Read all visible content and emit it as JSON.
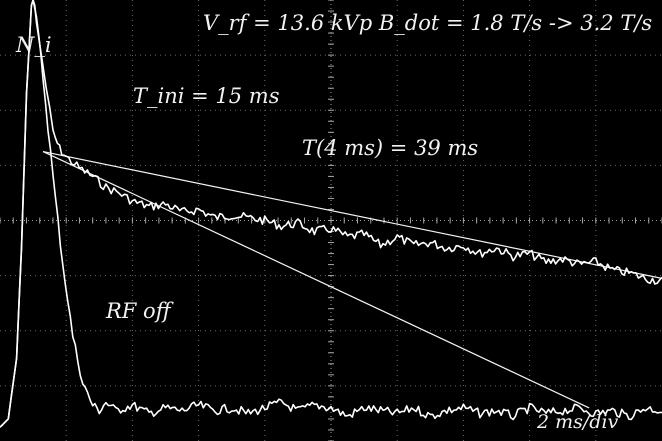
{
  "chart_data": {
    "type": "line",
    "title": "",
    "xlabel": "",
    "ylabel": "N_i",
    "x_scale": "2 ms/div",
    "annotations": {
      "header": "V_rf = 13.6 kVp  B_dot = 1.8 T/s -> 3.2 T/s",
      "t_fast": "T_ini = 15 ms",
      "t_slow": "T(4 ms) =  39 ms",
      "rf_off": "RF off",
      "timebase": "2 ms/div"
    },
    "grid": true,
    "xlim": [
      0,
      20
    ],
    "ylim": [
      0,
      8
    ],
    "series": [
      {
        "name": "",
        "x": [
          0.0,
          0.25,
          0.5,
          0.65,
          0.8,
          0.95,
          1.0,
          1.05,
          1.1,
          1.2,
          1.3,
          1.4,
          1.5,
          1.6,
          1.8,
          2.0,
          2.4,
          2.8,
          3.2,
          3.6,
          4.0,
          4.5,
          5.0,
          5.5,
          6.0,
          6.5,
          7.0,
          7.5,
          8.0,
          8.5,
          9.0,
          9.5,
          10.0,
          10.5,
          11.0,
          11.5,
          12.0,
          12.5,
          13.0,
          13.5,
          14.0,
          14.5,
          15.0,
          15.5,
          16.0,
          16.5,
          17.0,
          17.5,
          18.0,
          18.5,
          19.0,
          19.5,
          20.0
        ],
        "values": [
          0.25,
          0.4,
          1.5,
          3.5,
          6.3,
          7.9,
          8.0,
          7.9,
          7.6,
          7.2,
          6.8,
          6.4,
          6.0,
          5.6,
          5.3,
          5.15,
          4.95,
          4.8,
          4.6,
          4.5,
          4.35,
          4.25,
          4.3,
          4.15,
          4.2,
          4.05,
          4.1,
          4.05,
          4.0,
          3.9,
          3.95,
          3.8,
          3.85,
          3.7,
          3.75,
          3.55,
          3.7,
          3.55,
          3.6,
          3.5,
          3.55,
          3.4,
          3.5,
          3.35,
          3.4,
          3.25,
          3.3,
          3.2,
          3.25,
          3.1,
          3.05,
          2.95,
          2.9
        ]
      },
      {
        "name": "",
        "x": [
          0.0,
          0.25,
          0.5,
          0.65,
          0.8,
          0.95,
          1.0,
          1.1,
          1.3,
          1.6,
          1.9,
          2.2,
          2.5,
          2.8,
          3.0,
          3.2,
          3.5,
          4.0,
          4.5,
          5.0,
          5.5,
          6.0,
          6.5,
          7.0,
          7.5,
          8.0,
          8.5,
          9.0,
          9.5,
          10.0,
          10.5,
          11.0,
          11.5,
          12.0,
          12.5,
          13.0,
          13.5,
          14.0,
          14.5,
          15.0,
          15.5,
          16.0,
          16.5,
          17.0,
          17.5,
          18.0,
          18.5,
          19.0,
          19.5,
          20.0
        ],
        "values": [
          0.25,
          0.4,
          1.5,
          3.5,
          6.3,
          7.9,
          8.0,
          7.7,
          6.6,
          4.8,
          3.2,
          1.9,
          1.05,
          0.65,
          0.55,
          0.7,
          0.55,
          0.65,
          0.5,
          0.6,
          0.55,
          0.65,
          0.55,
          0.6,
          0.5,
          0.6,
          0.7,
          0.55,
          0.65,
          0.6,
          0.45,
          0.6,
          0.55,
          0.5,
          0.6,
          0.45,
          0.55,
          0.6,
          0.5,
          0.55,
          0.45,
          0.6,
          0.5,
          0.55,
          0.6,
          0.5,
          0.55,
          0.45,
          0.6,
          0.55
        ]
      }
    ],
    "fits": [
      {
        "name": "",
        "x": [
          1.3,
          20.0
        ],
        "values": [
          5.25,
          2.95
        ]
      },
      {
        "name": "",
        "x": [
          1.3,
          17.8
        ],
        "values": [
          5.25,
          0.6
        ]
      }
    ]
  }
}
